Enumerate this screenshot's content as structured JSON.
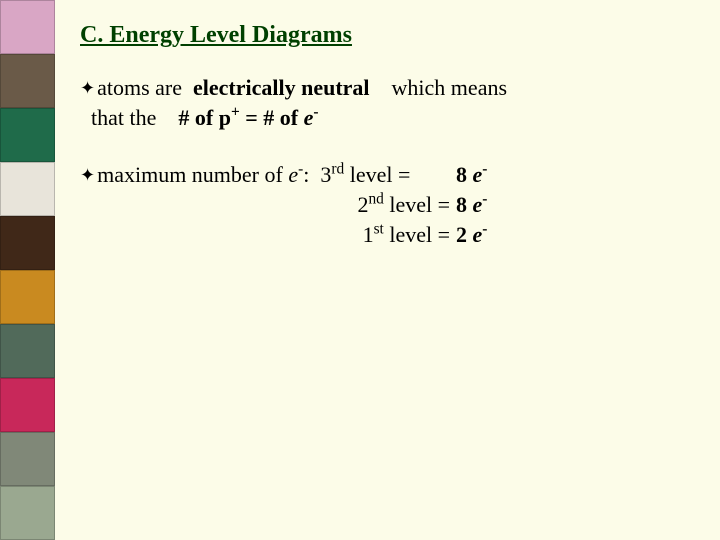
{
  "background_color": "#fcfce8",
  "title_color": "#004000",
  "text_color": "#000000",
  "font_family": "Georgia, 'Times New Roman', serif",
  "title_fontsize": 24,
  "body_fontsize": 22,
  "bullet_glyph": "✦",
  "title": "C.  Energy Level Diagrams",
  "bullet1": {
    "prefix": "atoms are",
    "bold1": "electrically neutral",
    "mid": "which means that the",
    "bold2_pre": "# of p",
    "bold2_sup": "+",
    "bold2_mid": " = # of ",
    "bold2_e": "e",
    "bold2_esup": "-"
  },
  "bullet2": {
    "prefix": "maximum number of ",
    "e": "e",
    "esup": "-",
    "after": ":"
  },
  "levels": [
    {
      "label_num": "3",
      "label_ord": "rd",
      "label_rest": " level =",
      "val": "8",
      "e": "e",
      "esup": "-"
    },
    {
      "label_num": "2",
      "label_ord": "nd",
      "label_rest": " level =",
      "val": "8",
      "e": "e",
      "esup": "-"
    },
    {
      "label_num": "1",
      "label_ord": "st",
      "label_rest": " level =",
      "val": "2",
      "e": "e",
      "esup": "-"
    }
  ],
  "sidebar_thumbs": [
    "#d9a6c5",
    "#6a5a48",
    "#1f6b4a",
    "#e8e4da",
    "#402818",
    "#c98a20",
    "#516a5a",
    "#c8285a",
    "#808878",
    "#9aa890"
  ]
}
